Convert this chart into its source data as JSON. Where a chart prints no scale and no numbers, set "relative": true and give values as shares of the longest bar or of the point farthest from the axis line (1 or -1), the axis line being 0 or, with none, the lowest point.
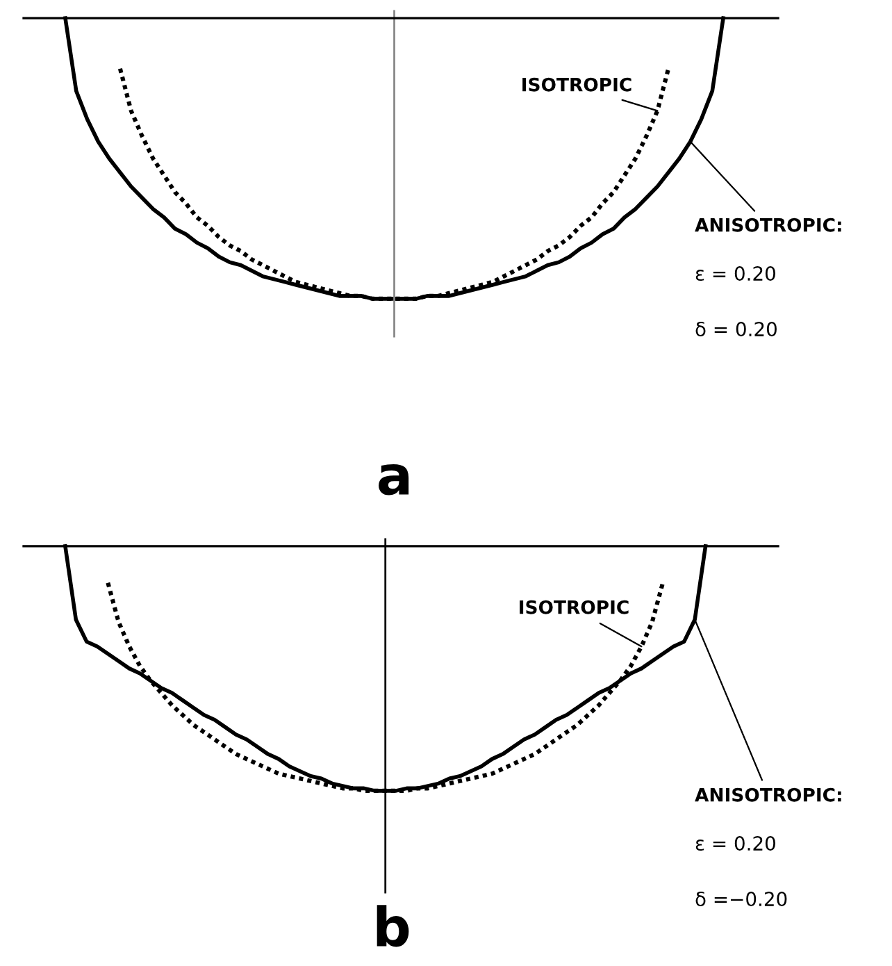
{
  "chart_data": [
    {
      "type": "line",
      "title": "a",
      "relative": true,
      "categories": [
        null,
        null,
        null,
        null,
        null,
        null,
        null,
        null,
        null,
        null,
        null,
        null,
        null,
        null,
        null,
        null,
        null,
        null,
        null,
        null,
        null,
        null,
        null,
        null,
        null,
        null,
        null,
        null,
        null,
        null,
        null,
        null,
        null,
        null,
        null,
        null,
        null,
        null,
        null,
        null,
        null,
        null,
        null,
        null,
        null,
        null,
        null,
        null,
        null,
        null,
        null,
        null,
        null,
        null,
        null,
        null,
        null,
        null,
        null,
        null,
        null
      ],
      "series": [
        {
          "name": "ANISOTROPIC:",
          "color": "#000000",
          "line_style": "solid",
          "values": [
            0,
            -0.26,
            -0.36,
            -0.44,
            -0.5,
            -0.55,
            -0.6,
            -0.64,
            -0.68,
            -0.71,
            -0.75,
            -0.77,
            -0.8,
            -0.82,
            -0.85,
            -0.87,
            -0.88,
            -0.9,
            -0.92,
            -0.93,
            -0.94,
            -0.95,
            -0.96,
            -0.97,
            -0.98,
            -0.99,
            -0.99,
            -0.99,
            -1.0,
            -1.0,
            -1.0,
            -1.0,
            -1.0,
            -0.99,
            -0.99,
            -0.99,
            -0.98,
            -0.97,
            -0.96,
            -0.95,
            -0.94,
            -0.93,
            -0.92,
            -0.9,
            -0.88,
            -0.87,
            -0.85,
            -0.82,
            -0.8,
            -0.77,
            -0.75,
            -0.71,
            -0.68,
            -0.64,
            -0.6,
            -0.55,
            -0.5,
            -0.44,
            -0.36,
            -0.26,
            0
          ]
        },
        {
          "name": "ISOTROPIC",
          "color": "#000000",
          "line_style": "dotted",
          "values": [
            null,
            null,
            null,
            null,
            null,
            -0.18,
            -0.33,
            -0.42,
            -0.5,
            -0.56,
            -0.62,
            -0.66,
            -0.71,
            -0.74,
            -0.78,
            -0.81,
            -0.83,
            -0.86,
            -0.88,
            -0.9,
            -0.92,
            -0.94,
            -0.95,
            -0.96,
            -0.97,
            -0.98,
            -0.99,
            -0.99,
            -1.0,
            -1.0,
            -1.0,
            -1.0,
            -1.0,
            -0.99,
            -0.99,
            -0.98,
            -0.97,
            -0.96,
            -0.95,
            -0.94,
            -0.92,
            -0.9,
            -0.88,
            -0.86,
            -0.83,
            -0.81,
            -0.78,
            -0.74,
            -0.71,
            -0.66,
            -0.62,
            -0.56,
            -0.5,
            -0.42,
            -0.33,
            -0.18,
            null,
            null,
            null,
            null,
            null
          ]
        }
      ],
      "annotations": [
        "ε = 0.20",
        "δ = 0.20"
      ]
    },
    {
      "type": "line",
      "title": "b",
      "relative": true,
      "categories": [
        null,
        null,
        null,
        null,
        null,
        null,
        null,
        null,
        null,
        null,
        null,
        null,
        null,
        null,
        null,
        null,
        null,
        null,
        null,
        null,
        null,
        null,
        null,
        null,
        null,
        null,
        null,
        null,
        null,
        null,
        null,
        null,
        null,
        null,
        null,
        null,
        null,
        null,
        null,
        null,
        null,
        null,
        null,
        null,
        null,
        null,
        null,
        null,
        null,
        null,
        null,
        null,
        null,
        null,
        null,
        null,
        null,
        null,
        null,
        null,
        null
      ],
      "series": [
        {
          "name": "ANISOTROPIC:",
          "color": "#000000",
          "line_style": "solid",
          "values": [
            0,
            -0.3,
            -0.39,
            -0.41,
            -0.44,
            -0.47,
            -0.5,
            -0.52,
            -0.55,
            -0.58,
            -0.6,
            -0.63,
            -0.66,
            -0.69,
            -0.71,
            -0.74,
            -0.77,
            -0.79,
            -0.82,
            -0.85,
            -0.87,
            -0.9,
            -0.92,
            -0.94,
            -0.95,
            -0.97,
            -0.98,
            -0.99,
            -0.99,
            -1.0,
            -1.0,
            -1.0,
            -0.99,
            -0.99,
            -0.98,
            -0.97,
            -0.95,
            -0.94,
            -0.92,
            -0.9,
            -0.87,
            -0.85,
            -0.82,
            -0.79,
            -0.77,
            -0.74,
            -0.71,
            -0.69,
            -0.66,
            -0.63,
            -0.6,
            -0.58,
            -0.55,
            -0.52,
            -0.5,
            -0.47,
            -0.44,
            -0.41,
            -0.39,
            -0.3,
            0
          ]
        },
        {
          "name": "ISOTROPIC",
          "color": "#000000",
          "line_style": "dotted",
          "values": [
            null,
            null,
            null,
            null,
            -0.15,
            -0.31,
            -0.41,
            -0.49,
            -0.55,
            -0.6,
            -0.65,
            -0.69,
            -0.73,
            -0.76,
            -0.79,
            -0.82,
            -0.85,
            -0.87,
            -0.89,
            -0.91,
            -0.93,
            -0.94,
            -0.95,
            -0.96,
            -0.97,
            -0.98,
            -0.99,
            -0.99,
            -1.0,
            -1.0,
            -1.0,
            -1.0,
            -1.0,
            -0.99,
            -0.99,
            -0.98,
            -0.97,
            -0.96,
            -0.95,
            -0.94,
            -0.93,
            -0.91,
            -0.89,
            -0.87,
            -0.85,
            -0.82,
            -0.79,
            -0.76,
            -0.73,
            -0.69,
            -0.65,
            -0.6,
            -0.55,
            -0.49,
            -0.41,
            -0.31,
            -0.15,
            null,
            null,
            null,
            null
          ]
        }
      ],
      "annotations": [
        "ε = 0.20",
        "δ =−0.20"
      ]
    }
  ]
}
